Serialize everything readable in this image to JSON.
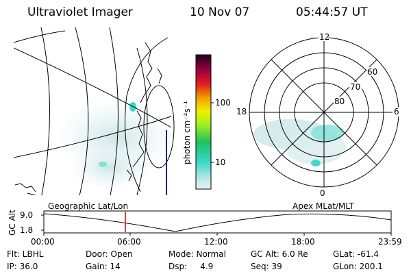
{
  "header": {
    "instrument": "Ultraviolet Imager",
    "date": "10 Nov 07",
    "time": "05:44:57 UT"
  },
  "colorbar": {
    "unit_label": "photon cm⁻²s⁻¹",
    "tick_labels": [
      "100",
      "10"
    ]
  },
  "polar_plot": {
    "mlt_labels": [
      "12",
      "18",
      "6",
      "0"
    ],
    "lat_labels": [
      "60",
      "70",
      "80"
    ]
  },
  "panels": {
    "left_title": "Geographic Lat/Lon",
    "right_title": "Apex MLat/MLT"
  },
  "altitude_plot": {
    "ylabel": "GC Alt",
    "y_ticks": [
      "9.0",
      "1.8"
    ],
    "x_ticks": [
      "00:00",
      "06:00",
      "12:00",
      "18:00",
      "23:59"
    ],
    "current_time_marker": "05:44:57"
  },
  "footer": {
    "filter": "Flt: LBHL",
    "door": "Door: Open",
    "mode": "Mode: Normal",
    "gc_alt": "GC Alt: 6.0 Re",
    "glat": "GLat: -61.4",
    "ip": "IP: 36.0",
    "gain": "Gain: 14",
    "dsp": "Dsp:     4.9",
    "seq": "Seq: 39",
    "glon": "GLon: 200.1"
  },
  "colors": {
    "marker": "#cc0000",
    "aurora_light": "#cfe6e6",
    "aurora_bright": "#40d8c8"
  }
}
